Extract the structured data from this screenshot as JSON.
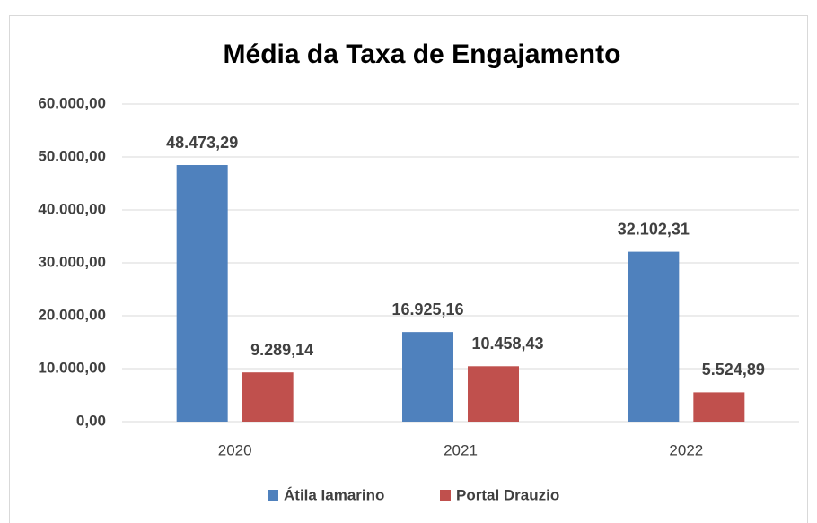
{
  "chart_data": {
    "type": "bar",
    "title": "Média da Taxa de Engajamento",
    "categories": [
      "2020",
      "2021",
      "2022"
    ],
    "series": [
      {
        "name": "Átila Iamarino",
        "color": "#4f81bd",
        "values": [
          48473.29,
          16925.16,
          32102.31
        ],
        "value_labels": [
          "48.473,29",
          "16.925,16",
          "32.102,31"
        ]
      },
      {
        "name": "Portal Drauzio",
        "color": "#c0504d",
        "values": [
          9289.14,
          10458.43,
          5524.89
        ],
        "value_labels": [
          "9.289,14",
          "10.458,43",
          "5.524,89"
        ]
      }
    ],
    "ylim": [
      0,
      60000
    ],
    "yticks": [
      {
        "value": 0,
        "label": "0,00"
      },
      {
        "value": 10000,
        "label": "10.000,00"
      },
      {
        "value": 20000,
        "label": "20.000,00"
      },
      {
        "value": 30000,
        "label": "30.000,00"
      },
      {
        "value": 40000,
        "label": "40.000,00"
      },
      {
        "value": 50000,
        "label": "50.000,00"
      },
      {
        "value": 60000,
        "label": "60.000,00"
      }
    ],
    "grid": true,
    "legend": "bottom"
  }
}
